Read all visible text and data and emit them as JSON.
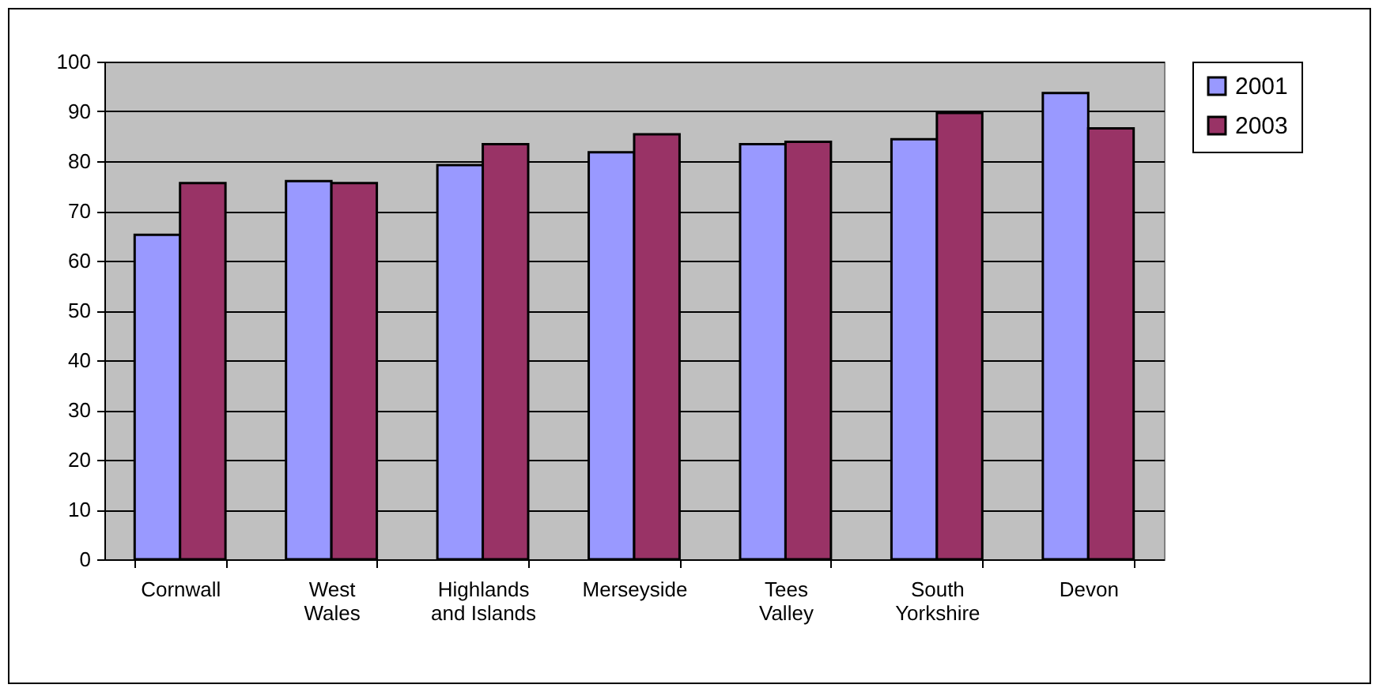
{
  "chart_data": {
    "type": "bar",
    "categories": [
      "Cornwall",
      "West\nWales",
      "Highlands\nand Islands",
      "Merseyside",
      "Tees\nValley",
      "South\nYorkshire",
      "Devon"
    ],
    "series": [
      {
        "name": "2001",
        "color": "#9999ff",
        "values": [
          65.2,
          76.0,
          79.2,
          81.8,
          83.4,
          84.4,
          93.7
        ]
      },
      {
        "name": "2003",
        "color": "#993366",
        "values": [
          75.6,
          75.6,
          83.4,
          85.4,
          83.9,
          89.7,
          86.6
        ]
      }
    ],
    "ylim": [
      0,
      100
    ],
    "yticks": [
      0,
      10,
      20,
      30,
      40,
      50,
      60,
      70,
      80,
      90,
      100
    ],
    "grid": "y",
    "legend": "right"
  }
}
